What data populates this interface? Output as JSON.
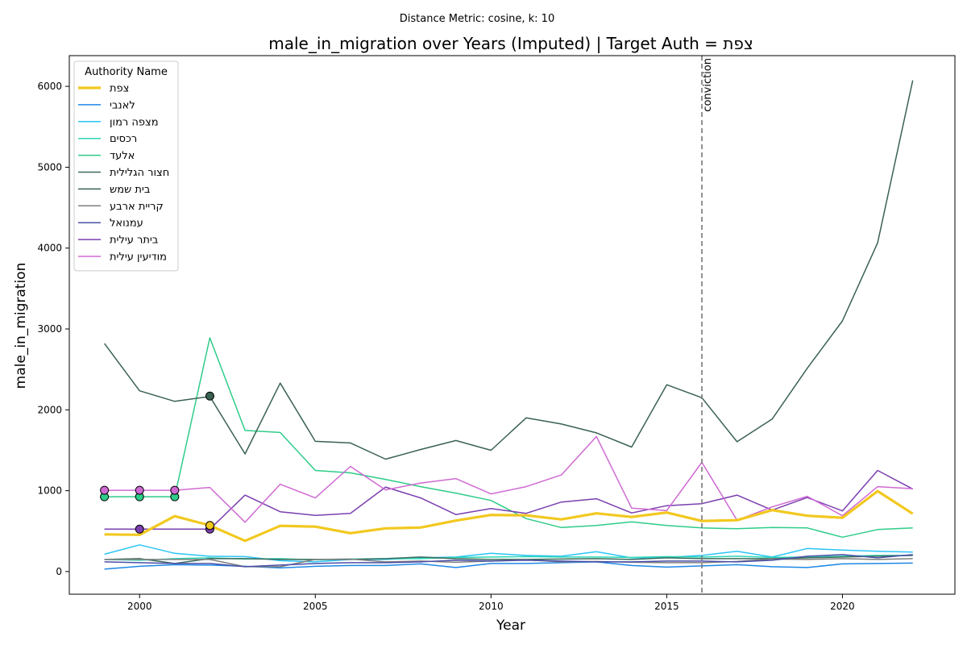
{
  "chart_data": {
    "type": "line",
    "suptitle": "Distance Metric: cosine, k: 10",
    "title": "male_in_migration over Years (Imputed) | Target Auth = צפת",
    "xlabel": "Year",
    "ylabel": "male_in_migration",
    "xlim": [
      1998.0,
      2023.2
    ],
    "ylim": [
      -280,
      6380
    ],
    "xticks": [
      2000,
      2005,
      2010,
      2015,
      2020
    ],
    "yticks": [
      0,
      1000,
      2000,
      3000,
      4000,
      5000,
      6000
    ],
    "legend_title": "Authority Name",
    "legend_position": "top-left",
    "annotation": {
      "x": 2016,
      "label": "conviction",
      "style": "dashed",
      "color": "#777777"
    },
    "x": [
      1999,
      2000,
      2001,
      2002,
      2003,
      2004,
      2005,
      2006,
      2007,
      2008,
      2009,
      2010,
      2011,
      2012,
      2013,
      2014,
      2015,
      2016,
      2017,
      2018,
      2019,
      2020,
      2021,
      2022
    ],
    "series": [
      {
        "name": "בינאל",
        "color": "#1e88e5",
        "width": 1.5,
        "values": [
          30,
          65,
          85,
          80,
          65,
          45,
          65,
          75,
          75,
          95,
          50,
          100,
          100,
          110,
          120,
          75,
          55,
          70,
          85,
          60,
          50,
          95,
          100,
          105
        ]
      },
      {
        "name": "מצפה רמון",
        "color": "#29c5f6",
        "width": 1.5,
        "values": [
          215,
          330,
          225,
          190,
          185,
          135,
          120,
          150,
          150,
          170,
          180,
          225,
          200,
          190,
          245,
          170,
          175,
          200,
          250,
          180,
          285,
          265,
          250,
          240
        ]
      },
      {
        "name": "כרסים",
        "color": "#2ed6b6",
        "width": 1.5,
        "values": [
          150,
          140,
          160,
          170,
          155,
          160,
          145,
          155,
          160,
          160,
          175,
          180,
          185,
          180,
          180,
          175,
          185,
          180,
          190,
          175,
          180,
          190,
          200,
          200
        ]
      },
      {
        "name": "אלעד",
        "color": "#2ecc88",
        "width": 1.5,
        "values": [
          925,
          925,
          925,
          2890,
          1745,
          1720,
          1250,
          1220,
          1140,
          1050,
          970,
          880,
          655,
          545,
          570,
          615,
          570,
          540,
          530,
          545,
          540,
          425,
          520,
          540
        ]
      },
      {
        "name": "חצור הגלילית",
        "color": "#3d6b5c",
        "width": 1.5,
        "values": [
          150,
          160,
          100,
          160,
          160,
          150,
          150,
          150,
          160,
          180,
          160,
          150,
          150,
          155,
          160,
          150,
          170,
          160,
          160,
          160,
          170,
          180,
          190,
          200
        ]
      },
      {
        "name": "בית שמש",
        "color": "#3a6252",
        "width": 1.5,
        "values": [
          2820,
          2235,
          2105,
          2165,
          1455,
          2330,
          1610,
          1590,
          1390,
          1510,
          1620,
          1500,
          1900,
          1825,
          1715,
          1540,
          2310,
          2150,
          1605,
          1885,
          2515,
          3100,
          4065,
          6075
        ]
      },
      {
        "name": "קריית ארבע",
        "color": "#7f7f7f",
        "width": 1.5,
        "values": [
          150,
          150,
          150,
          150,
          60,
          60,
          150,
          155,
          120,
          130,
          115,
          130,
          145,
          120,
          125,
          115,
          110,
          110,
          125,
          155,
          150,
          160,
          150,
          160
        ]
      },
      {
        "name": "עמנואל",
        "color": "#4b4fa8",
        "width": 1.5,
        "values": [
          120,
          110,
          100,
          100,
          60,
          80,
          100,
          110,
          110,
          120,
          140,
          130,
          140,
          130,
          120,
          120,
          130,
          130,
          120,
          140,
          190,
          210,
          170,
          210
        ]
      },
      {
        "name": "ביתר עילית",
        "color": "#7b3fb0",
        "width": 1.5,
        "values": [
          525,
          525,
          525,
          525,
          945,
          740,
          695,
          720,
          1045,
          910,
          705,
          780,
          720,
          860,
          900,
          725,
          815,
          840,
          945,
          760,
          915,
          750,
          1250,
          1020
        ]
      },
      {
        "name": "מודיעין עילית",
        "color": "#d06ad3",
        "width": 1.5,
        "values": [
          1005,
          1005,
          1005,
          1040,
          610,
          1080,
          910,
          1300,
          1010,
          1095,
          1150,
          960,
          1050,
          1195,
          1670,
          785,
          755,
          1350,
          635,
          800,
          930,
          690,
          1050,
          1025
        ]
      },
      {
        "name": "צפת",
        "color": "#f2c81f",
        "width": 3.2,
        "values": [
          460,
          455,
          685,
          570,
          380,
          565,
          555,
          475,
          535,
          545,
          630,
          700,
          695,
          645,
          720,
          675,
          730,
          625,
          635,
          760,
          690,
          665,
          995,
          715
        ]
      }
    ],
    "legend_order": [
      "צפת",
      "בינאל",
      "מצפה רמון",
      "כרסים",
      "אלעד",
      "חצור הגלילית",
      "בית שמש",
      "קריית ארבע",
      "עמנואל",
      "ביתר עילית",
      "מודיעין עילית"
    ],
    "legend_labels": [
      "תפצ",
      "יבנאל",
      "ןומר הפצמ",
      "םיסכר",
      "דעלא",
      "תילילגה רוצח",
      "שמש תיב",
      "עברא תיירק",
      "לאונמע",
      "תיליע רתיב",
      "תיליע ןיעידומ"
    ],
    "imputed_markers": [
      {
        "series": "בית שמש",
        "x": 2002,
        "y": 2170,
        "color": "#3a6252"
      },
      {
        "series": "אלעד",
        "x": 1999,
        "y": 925,
        "color": "#2ecc88"
      },
      {
        "series": "אלעד",
        "x": 2000,
        "y": 925,
        "color": "#2ecc88"
      },
      {
        "series": "אלעד",
        "x": 2001,
        "y": 925,
        "color": "#2ecc88"
      },
      {
        "series": "מודיעין עילית",
        "x": 1999,
        "y": 1005,
        "color": "#d06ad3"
      },
      {
        "series": "מודיעין עילית",
        "x": 2000,
        "y": 1005,
        "color": "#d06ad3"
      },
      {
        "series": "מודיעין עילית",
        "x": 2001,
        "y": 1005,
        "color": "#d06ad3"
      },
      {
        "series": "ביתר עילית",
        "x": 2000,
        "y": 525,
        "color": "#7b3fb0"
      },
      {
        "series": "ביתר עילית",
        "x": 2002,
        "y": 525,
        "color": "#7b3fb0"
      },
      {
        "series": "צפת",
        "x": 2002,
        "y": 570,
        "color": "#f2c81f"
      }
    ]
  }
}
